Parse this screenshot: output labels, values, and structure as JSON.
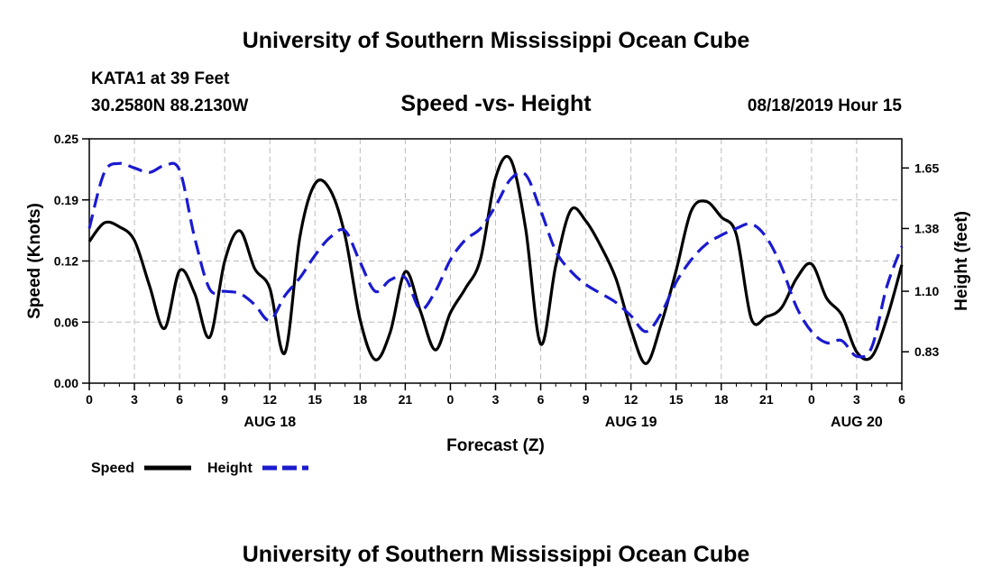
{
  "header": {
    "title_top": "University of Southern Mississippi Ocean Cube",
    "station": "KATA1 at 39 Feet",
    "coords": "30.2580N 88.2130W",
    "chart_title": "Speed -vs- Height",
    "datetime": "08/18/2019 Hour 15",
    "title_bottom": "University of Southern Mississippi Ocean Cube"
  },
  "colors": {
    "speed": "#000000",
    "height": "#1a1ad0",
    "grid": "#bbbbbb"
  },
  "chart_data": {
    "type": "line",
    "title": "Speed -vs- Height",
    "xlabel": "Forecast (Z)",
    "ylabel": "Speed (Knots)",
    "y2label": "Height (feet)",
    "xlim": [
      0,
      54
    ],
    "ylim": [
      0,
      0.25
    ],
    "y2lim": [
      0.69,
      1.78
    ],
    "x_ticks": [
      0,
      3,
      6,
      9,
      12,
      15,
      18,
      21,
      24,
      27,
      30,
      33,
      36,
      39,
      42,
      45,
      48,
      51,
      54
    ],
    "x_tick_labels": [
      "0",
      "3",
      "6",
      "9",
      "12",
      "15",
      "18",
      "21",
      "0",
      "3",
      "6",
      "9",
      "12",
      "15",
      "18",
      "21",
      "0",
      "3",
      "6"
    ],
    "y_ticks": [
      0,
      0.0625,
      0.125,
      0.1875,
      0.25
    ],
    "y_tick_labels": [
      "0.00",
      "0.06",
      "0.12",
      "0.19",
      "0.25"
    ],
    "y2_ticks": [
      0.83,
      1.1,
      1.38,
      1.65
    ],
    "y2_tick_labels": [
      "0.83",
      "1.10",
      "1.38",
      "1.65"
    ],
    "date_labels": [
      {
        "x": 12,
        "label": "AUG 18"
      },
      {
        "x": 36,
        "label": "AUG 19"
      },
      {
        "x": 51,
        "label": "AUG 20"
      }
    ],
    "grid": true,
    "legend": [
      {
        "name": "Speed",
        "style": "solid"
      },
      {
        "name": "Height",
        "style": "dashed"
      }
    ],
    "series": [
      {
        "name": "Speed",
        "axis": "left",
        "style": "solid",
        "x": [
          0,
          1,
          2,
          3,
          4,
          5,
          6,
          7,
          8,
          9,
          10,
          11,
          12,
          13,
          14,
          15,
          16,
          17,
          18,
          19,
          20,
          21,
          22,
          23,
          24,
          25,
          26,
          27,
          28,
          29,
          30,
          31,
          32,
          33,
          34,
          35,
          36,
          37,
          38,
          39,
          40,
          41,
          42,
          43,
          44,
          45,
          46,
          47,
          48,
          49,
          50,
          51,
          52,
          53,
          54
        ],
        "values": [
          0.145,
          0.164,
          0.16,
          0.146,
          0.1,
          0.056,
          0.115,
          0.092,
          0.047,
          0.125,
          0.156,
          0.117,
          0.097,
          0.031,
          0.15,
          0.204,
          0.198,
          0.151,
          0.065,
          0.024,
          0.052,
          0.114,
          0.074,
          0.034,
          0.072,
          0.097,
          0.127,
          0.21,
          0.229,
          0.158,
          0.04,
          0.12,
          0.177,
          0.166,
          0.14,
          0.107,
          0.055,
          0.02,
          0.06,
          0.115,
          0.176,
          0.186,
          0.17,
          0.152,
          0.066,
          0.068,
          0.077,
          0.107,
          0.122,
          0.087,
          0.07,
          0.032,
          0.027,
          0.066,
          0.121
        ]
      },
      {
        "name": "Height",
        "axis": "right",
        "style": "dashed",
        "x": [
          0,
          1,
          2,
          3,
          4,
          5,
          6,
          7,
          8,
          9,
          10,
          11,
          12,
          13,
          14,
          15,
          16,
          17,
          18,
          19,
          20,
          21,
          22,
          23,
          24,
          25,
          26,
          27,
          28,
          29,
          30,
          31,
          32,
          33,
          34,
          35,
          36,
          37,
          38,
          39,
          40,
          41,
          42,
          43,
          44,
          45,
          46,
          47,
          48,
          49,
          50,
          51,
          52,
          53,
          54
        ],
        "values": [
          1.38,
          1.63,
          1.67,
          1.65,
          1.63,
          1.66,
          1.64,
          1.34,
          1.11,
          1.1,
          1.09,
          1.04,
          0.97,
          1.08,
          1.16,
          1.26,
          1.34,
          1.37,
          1.23,
          1.1,
          1.15,
          1.16,
          1.02,
          1.1,
          1.24,
          1.33,
          1.38,
          1.48,
          1.6,
          1.62,
          1.46,
          1.28,
          1.19,
          1.13,
          1.09,
          1.05,
          0.99,
          0.92,
          1.0,
          1.14,
          1.24,
          1.31,
          1.35,
          1.38,
          1.4,
          1.34,
          1.21,
          1.03,
          0.92,
          0.87,
          0.88,
          0.81,
          0.85,
          1.12,
          1.3
        ]
      }
    ]
  }
}
